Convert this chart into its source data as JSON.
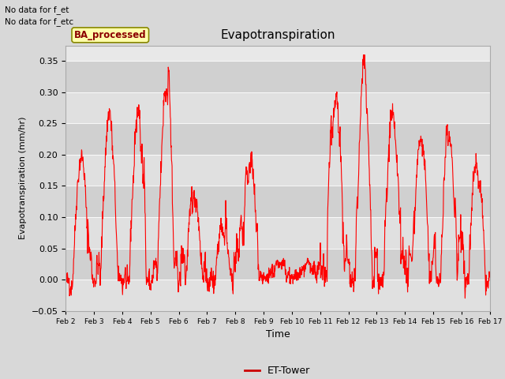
{
  "title": "Evapotranspiration",
  "xlabel": "Time",
  "ylabel": "Evapotranspiration (mm/hr)",
  "ylim": [
    -0.05,
    0.375
  ],
  "yticks": [
    -0.05,
    0.0,
    0.05,
    0.1,
    0.15,
    0.2,
    0.25,
    0.3,
    0.35
  ],
  "bg_color": "#d8d8d8",
  "plot_bg": "#e8e8e8",
  "band_colors": [
    "#e0e0e0",
    "#d0d0d0"
  ],
  "line_color": "#ff0000",
  "line_width": 0.8,
  "legend_label": "ET-Tower",
  "legend_line_color": "#cc0000",
  "top_left_text_line1": "No data for f_et",
  "top_left_text_line2": "No data for f_etc",
  "box_label": "BA_processed",
  "box_facecolor": "#ffffaa",
  "box_edgecolor": "#888800",
  "xtick_labels": [
    "Feb 2",
    "Feb 3",
    "Feb 4",
    "Feb 5",
    "Feb 6",
    "Feb 7",
    "Feb 8",
    "Feb 9",
    "Feb 10",
    "Feb 11",
    "Feb 12",
    "Feb 13",
    "Feb 14",
    "Feb 15",
    "Feb 16",
    "Feb 17"
  ],
  "n_points": 1440,
  "peaks": [
    0.2,
    0.27,
    0.25,
    0.3,
    0.13,
    0.085,
    0.18,
    0.065,
    0.055,
    0.28,
    0.32,
    0.26,
    0.23,
    0.23,
    0.19
  ]
}
